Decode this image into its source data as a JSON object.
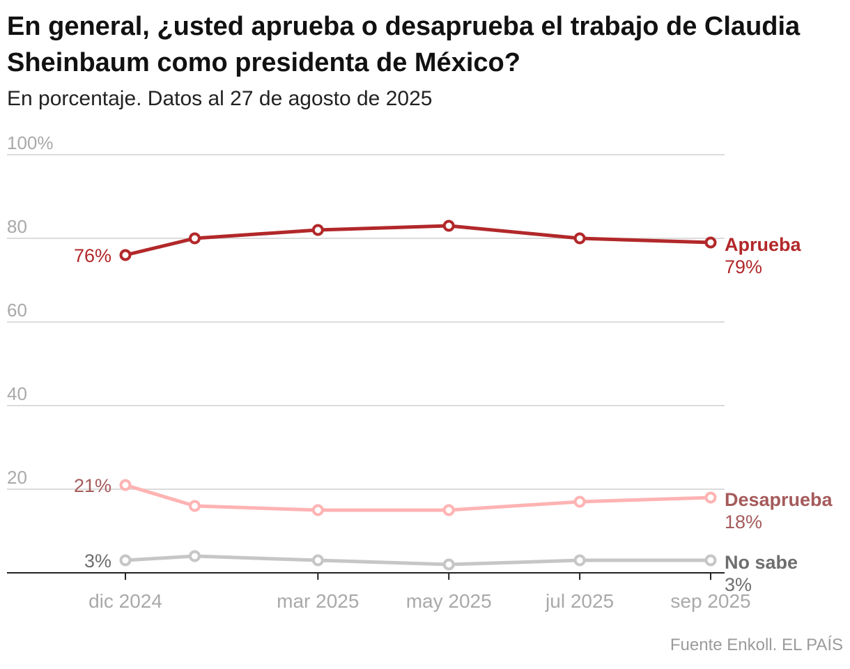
{
  "title": "En general, ¿usted aprueba o desaprueba el trabajo de Claudia Sheinbaum como presidenta de México?",
  "subtitle": "En porcentaje. Datos al 27 de agosto de 2025",
  "source": "Fuente Enkoll. EL PAÍS",
  "chart_data": {
    "type": "line",
    "ylim": [
      0,
      100
    ],
    "yticks": [
      {
        "value": 100,
        "label": "100%"
      },
      {
        "value": 80,
        "label": "80"
      },
      {
        "value": 60,
        "label": "60"
      },
      {
        "value": 40,
        "label": "40"
      },
      {
        "value": 20,
        "label": "20"
      }
    ],
    "xlim": [
      2024.75,
      2025.71
    ],
    "xticks": [
      {
        "value": 2024.92,
        "label": "dic 2024"
      },
      {
        "value": 2025.17,
        "label": "mar 2025"
      },
      {
        "value": 2025.34,
        "label": "may 2025"
      },
      {
        "value": 2025.51,
        "label": "jul 2025"
      },
      {
        "value": 2025.68,
        "label": "sep 2025"
      }
    ],
    "grid": true,
    "series": [
      {
        "name": "Aprueba",
        "color": "#b2282a",
        "points": [
          {
            "x": 2024.92,
            "y": 76
          },
          {
            "x": 2025.01,
            "y": 80
          },
          {
            "x": 2025.17,
            "y": 82
          },
          {
            "x": 2025.34,
            "y": 83
          },
          {
            "x": 2025.51,
            "y": 80
          },
          {
            "x": 2025.68,
            "y": 79
          }
        ],
        "start_label": "76%",
        "end_label": "79%"
      },
      {
        "name": "Desaprueba",
        "color": "#ffb3b3",
        "label_color": "#a55a5a",
        "points": [
          {
            "x": 2024.92,
            "y": 21
          },
          {
            "x": 2025.01,
            "y": 16
          },
          {
            "x": 2025.17,
            "y": 15
          },
          {
            "x": 2025.34,
            "y": 15
          },
          {
            "x": 2025.51,
            "y": 17
          },
          {
            "x": 2025.68,
            "y": 18
          }
        ],
        "start_label": "21%",
        "end_label": "18%"
      },
      {
        "name": "No sabe",
        "color": "#c6c6c6",
        "label_color": "#6e6e6e",
        "points": [
          {
            "x": 2024.92,
            "y": 3
          },
          {
            "x": 2025.01,
            "y": 4
          },
          {
            "x": 2025.17,
            "y": 3
          },
          {
            "x": 2025.34,
            "y": 2
          },
          {
            "x": 2025.51,
            "y": 3
          },
          {
            "x": 2025.68,
            "y": 3
          }
        ],
        "start_label": "3%",
        "end_label": "3%"
      }
    ]
  }
}
